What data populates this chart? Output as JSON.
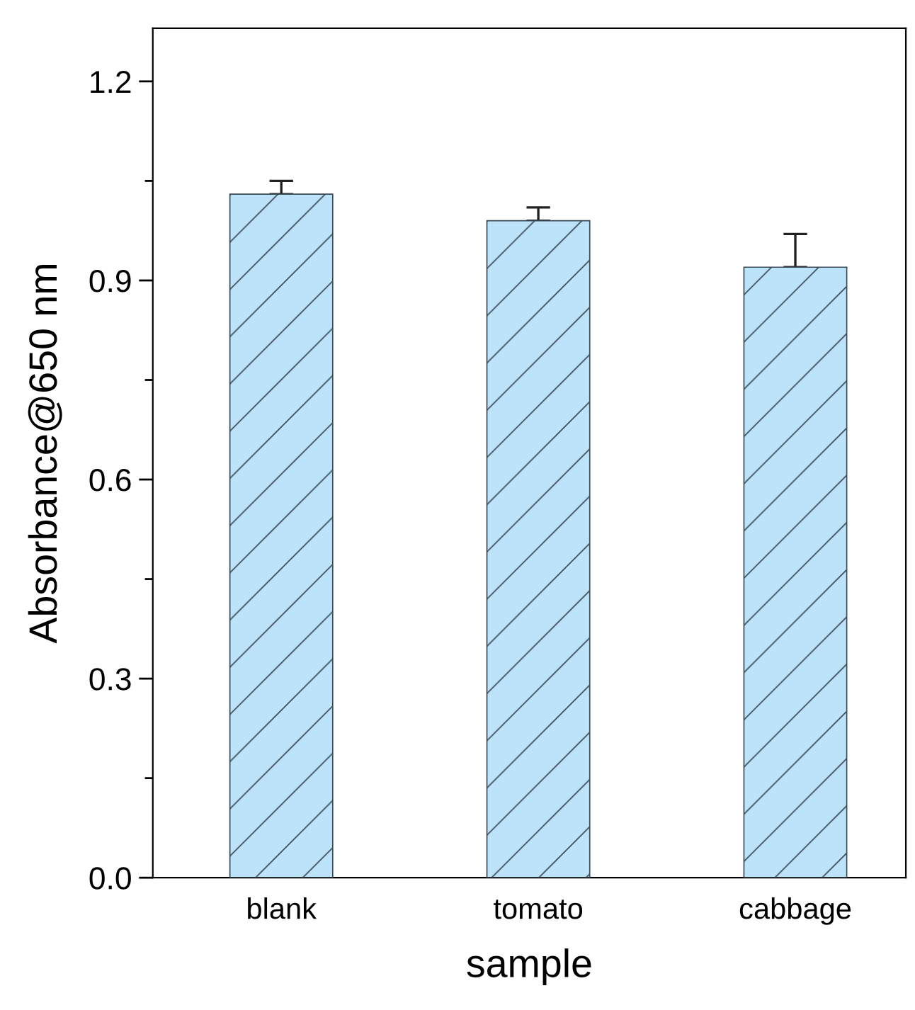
{
  "chart_data": {
    "type": "bar",
    "xlabel": "sample",
    "ylabel": "Absorbance@650 nm",
    "categories": [
      "blank",
      "tomato",
      "cabbage"
    ],
    "values": [
      1.03,
      0.99,
      0.92
    ],
    "errors": [
      [
        1.03,
        1.05
      ],
      [
        0.99,
        1.01
      ],
      [
        0.92,
        0.97
      ]
    ],
    "color": "#bde3fa",
    "ylim": [
      0,
      1.28
    ],
    "yticks": [
      {
        "value": 0,
        "label": "0.0"
      },
      {
        "value": 0.3,
        "label": "0.3"
      },
      {
        "value": 0.6,
        "label": "0.6"
      },
      {
        "value": 0.9,
        "label": "0.9"
      },
      {
        "value": 1.2,
        "label": "1.2"
      }
    ],
    "grid": false,
    "legend": false
  }
}
